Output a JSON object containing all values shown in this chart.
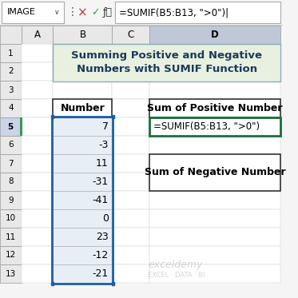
{
  "title_text": "Summing Positive and Negative\nNumbers with SUMIF Function",
  "title_bg": "#e8f0e0",
  "formula_bar_name": "IMAGE",
  "formula_bar_formula": "=SUMIF(B5:B13, \">0\")|",
  "col_headers": [
    "A",
    "B",
    "C",
    "D"
  ],
  "row_numbers": [
    "1",
    "2",
    "3",
    "4",
    "5",
    "6",
    "7",
    "8",
    "9",
    "10",
    "11",
    "12",
    "13"
  ],
  "numbers": [
    7,
    -3,
    11,
    -31,
    -41,
    0,
    23,
    -12,
    -21
  ],
  "number_header": "Number",
  "pos_label": "Sum of Positive Number",
  "neg_label": "Sum of Negative Number",
  "formula_text": "=SUMIF(B5:B13, \">0\")",
  "cell_bg_light": "#e8eef5",
  "header_bg": "#ffffff",
  "selected_col_bg": "#c0d0e8",
  "title_border": "#9ab0c0",
  "box_border": "#333333",
  "active_cell_border": "#1a6e3c",
  "formula_bar_bg": "#f0f0f0",
  "col_header_bg": "#e0e0e0",
  "selected_col_header_bg": "#c0c8d8",
  "row_header_bg": "#e0e0e0",
  "active_row_header_bg": "#c0c8d8"
}
